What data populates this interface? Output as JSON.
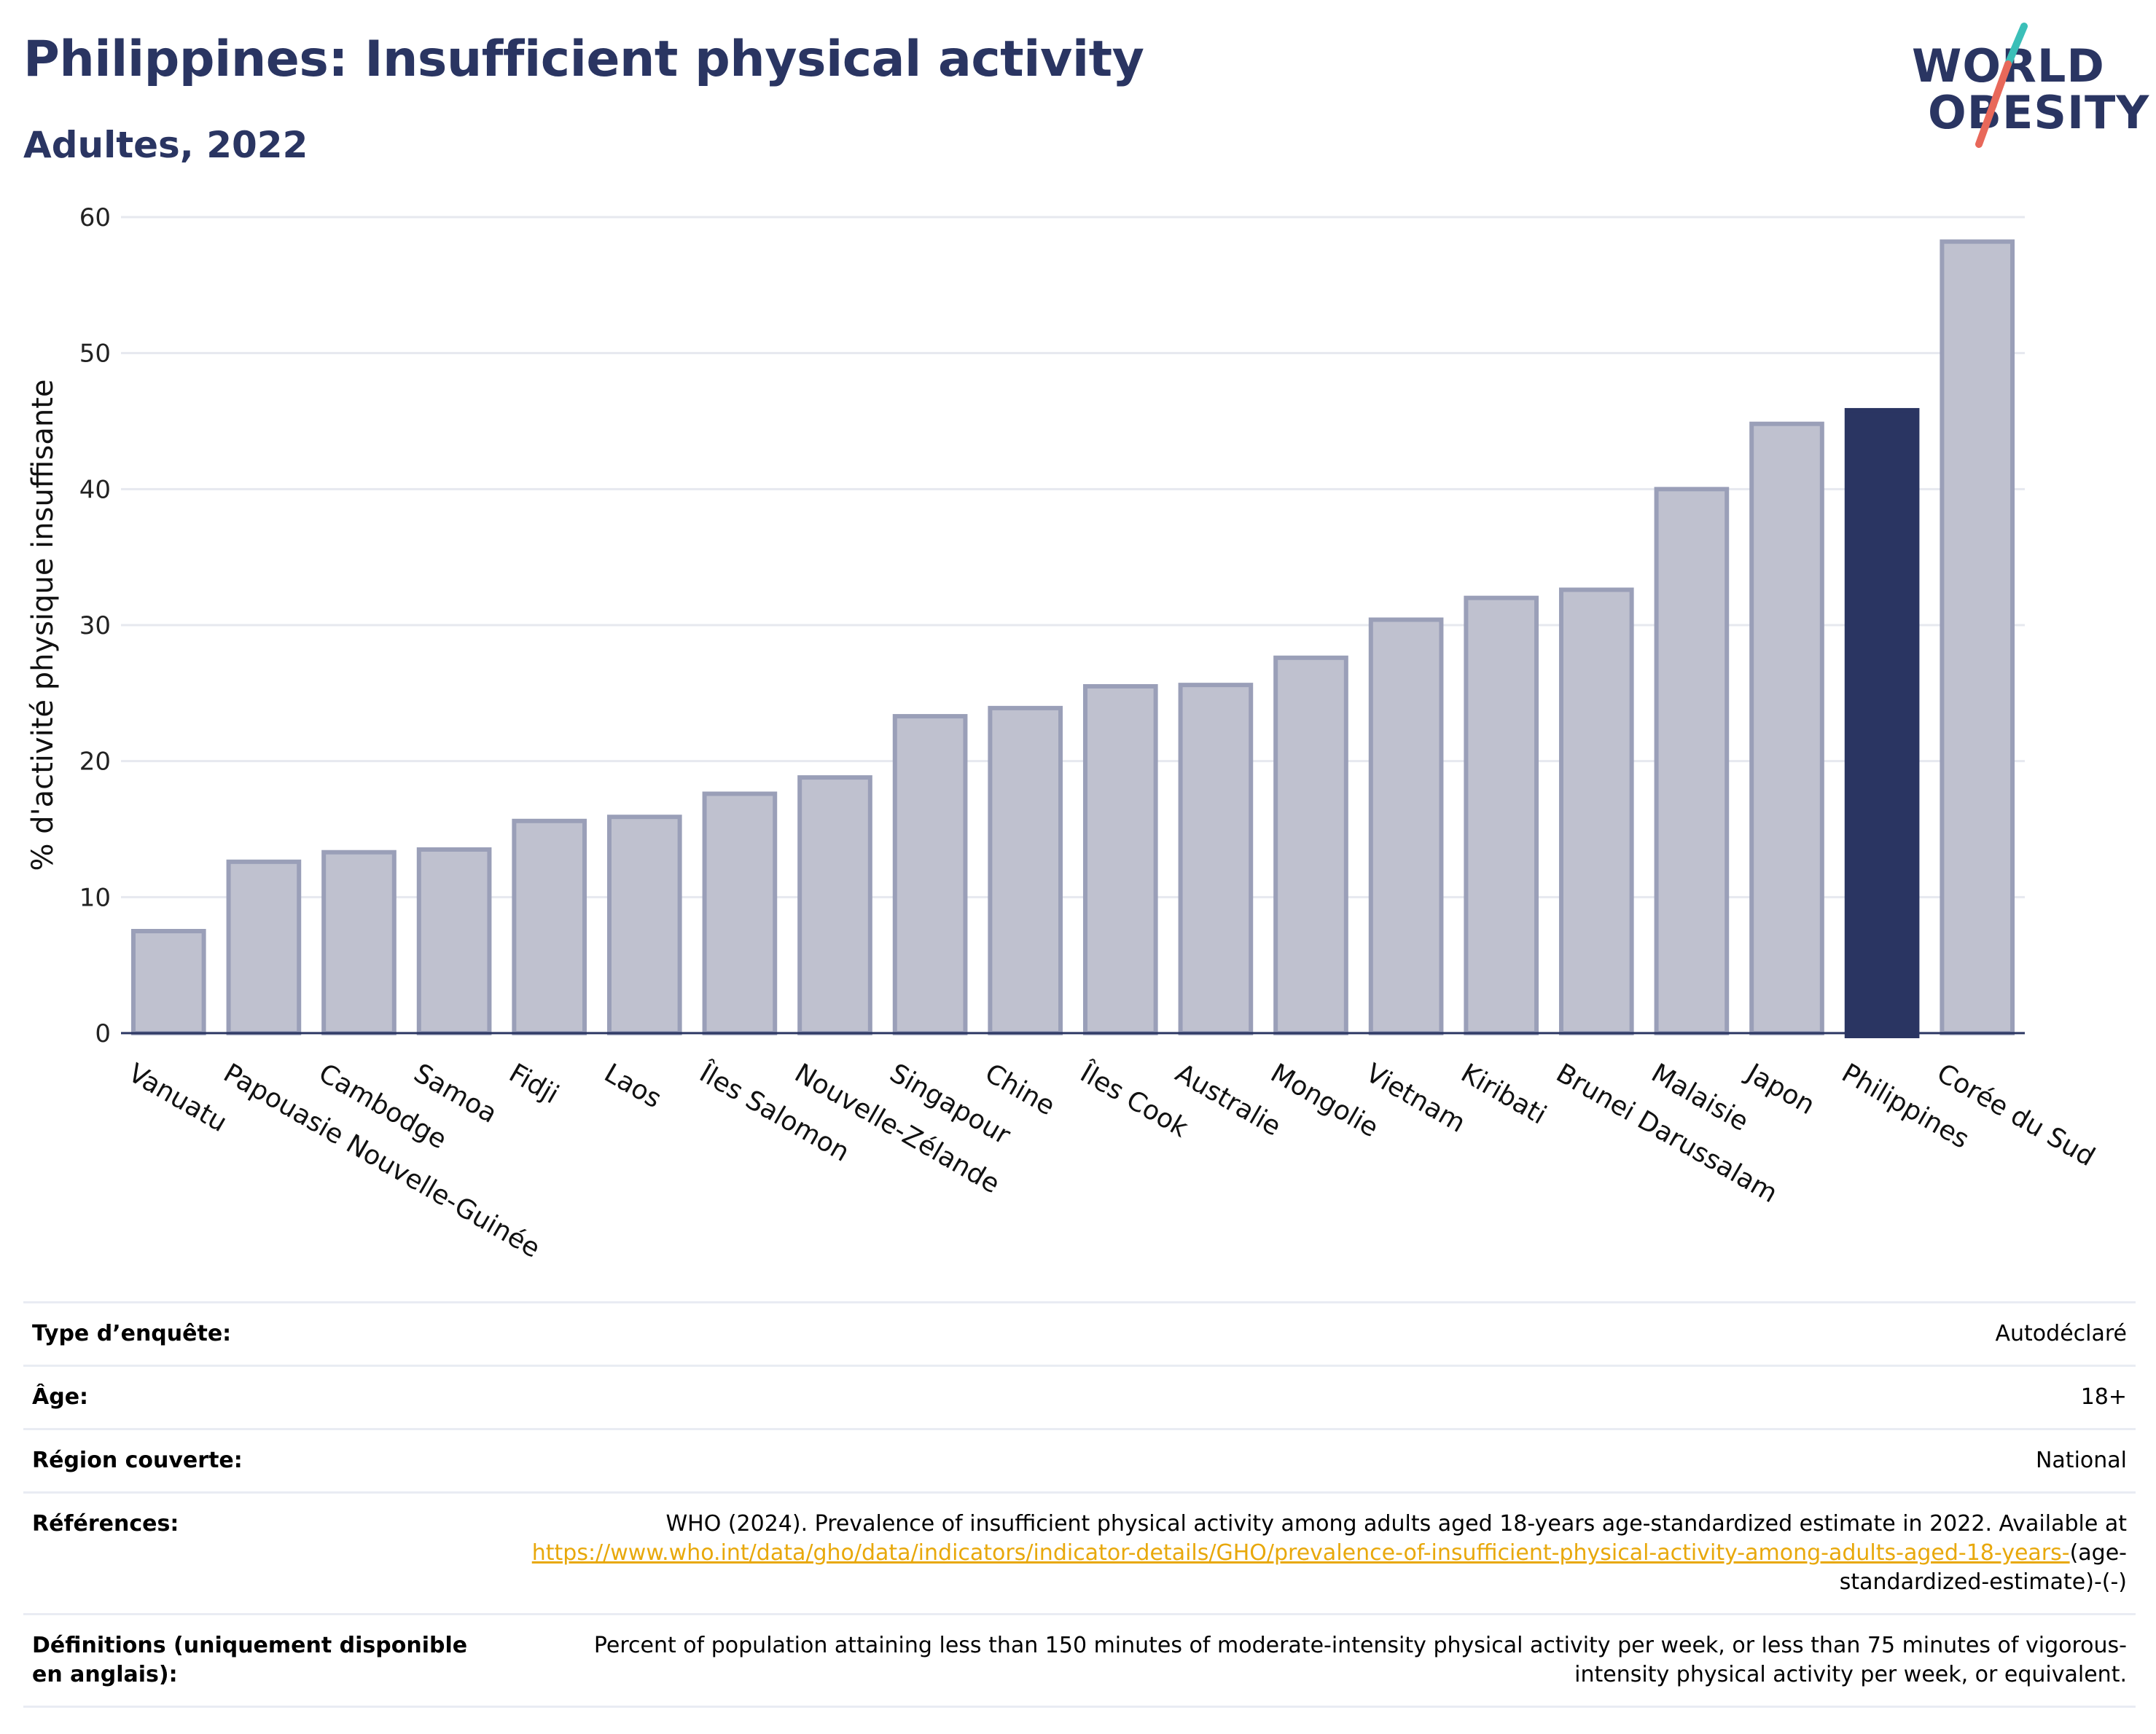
{
  "header": {
    "title": "Philippines: Insufficient physical activity",
    "subtitle": "Adultes, 2022"
  },
  "logo": {
    "line1": "WORLD",
    "line2": "OBESITY",
    "colors": {
      "text": "#2a3562",
      "slash_top": "#3bbfb8",
      "slash_bottom": "#e8685a"
    }
  },
  "chart_data": {
    "type": "bar",
    "ylabel": "% d'activité physique insuffisante",
    "ylim": [
      0,
      60
    ],
    "yticks": [
      0,
      10,
      20,
      30,
      40,
      50,
      60
    ],
    "grid": true,
    "categories": [
      "Vanuatu",
      "Papouasie Nouvelle-Guinée",
      "Cambodge",
      "Samoa",
      "Fidji",
      "Laos",
      "Îles Salomon",
      "Nouvelle-Zélande",
      "Singapour",
      "Chine",
      "Îles Cook",
      "Australie",
      "Mongolie",
      "Vietnam",
      "Kiribati",
      "Brunei Darussalam",
      "Malaisie",
      "Japon",
      "Philippines",
      "Corée du Sud"
    ],
    "values": [
      7.5,
      12.6,
      13.3,
      13.5,
      15.6,
      15.9,
      17.6,
      18.8,
      23.3,
      23.9,
      25.5,
      25.6,
      27.6,
      30.4,
      32.0,
      32.6,
      40.0,
      44.8,
      45.8,
      58.2
    ],
    "highlight": "Philippines",
    "colors": {
      "bar": "#bfc1cf",
      "bar_border": "#9a9fb8",
      "highlight": "#2a3562",
      "axis": "#2a3562",
      "grid": "#e6e8ef"
    }
  },
  "details": [
    {
      "key": "Type d’enquête:",
      "value": "Autodéclaré"
    },
    {
      "key": "Âge:",
      "value": "18+"
    },
    {
      "key": "Région couverte:",
      "value": "National"
    },
    {
      "key": "Références:",
      "value_before": "WHO (2024). Prevalence of insufficient physical activity among adults aged 18-years age-standardized estimate in 2022. Available at",
      "link": "https://www.who.int/data/gho/data/indicators/indicator-details/GHO/prevalence-of-insufficient-physical-activity-among-adults-aged-18-years-",
      "value_after": "(age-standardized-estimate)-(-)"
    },
    {
      "key": "Définitions (uniquement disponible en anglais):",
      "value": "Percent of population attaining less than 150 minutes of moderate-intensity physical activity per week, or less than 75 minutes of vigorous-intensity physical activity per week, or equivalent."
    }
  ]
}
